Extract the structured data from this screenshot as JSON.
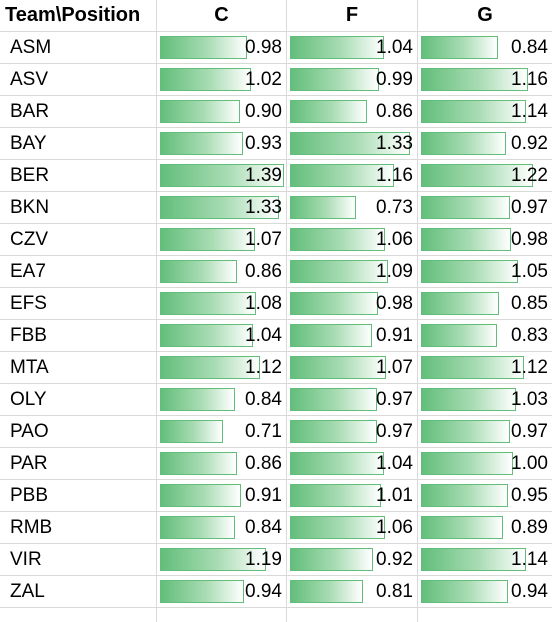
{
  "header": {
    "team_label": "Team\\Position",
    "col_c": "C",
    "col_f": "F",
    "col_g": "G"
  },
  "bar_max_value": 1.39,
  "bar_color": "#63be7b",
  "rows": [
    {
      "team": "ASM",
      "c": "0.98",
      "f": "1.04",
      "g": "0.84"
    },
    {
      "team": "ASV",
      "c": "1.02",
      "f": "0.99",
      "g": "1.16"
    },
    {
      "team": "BAR",
      "c": "0.90",
      "f": "0.86",
      "g": "1.14"
    },
    {
      "team": "BAY",
      "c": "0.93",
      "f": "1.33",
      "g": "0.92"
    },
    {
      "team": "BER",
      "c": "1.39",
      "f": "1.16",
      "g": "1.22"
    },
    {
      "team": "BKN",
      "c": "1.33",
      "f": "0.73",
      "g": "0.97"
    },
    {
      "team": "CZV",
      "c": "1.07",
      "f": "1.06",
      "g": "0.98"
    },
    {
      "team": "EA7",
      "c": "0.86",
      "f": "1.09",
      "g": "1.05"
    },
    {
      "team": "EFS",
      "c": "1.08",
      "f": "0.98",
      "g": "0.85"
    },
    {
      "team": "FBB",
      "c": "1.04",
      "f": "0.91",
      "g": "0.83"
    },
    {
      "team": "MTA",
      "c": "1.12",
      "f": "1.07",
      "g": "1.12"
    },
    {
      "team": "OLY",
      "c": "0.84",
      "f": "0.97",
      "g": "1.03"
    },
    {
      "team": "PAO",
      "c": "0.71",
      "f": "0.97",
      "g": "0.97"
    },
    {
      "team": "PAR",
      "c": "0.86",
      "f": "1.04",
      "g": "1.00"
    },
    {
      "team": "PBB",
      "c": "0.91",
      "f": "1.01",
      "g": "0.95"
    },
    {
      "team": "RMB",
      "c": "0.84",
      "f": "1.06",
      "g": "0.89"
    },
    {
      "team": "VIR",
      "c": "1.19",
      "f": "0.92",
      "g": "1.14"
    },
    {
      "team": "ZAL",
      "c": "0.94",
      "f": "0.81",
      "g": "0.94"
    }
  ]
}
